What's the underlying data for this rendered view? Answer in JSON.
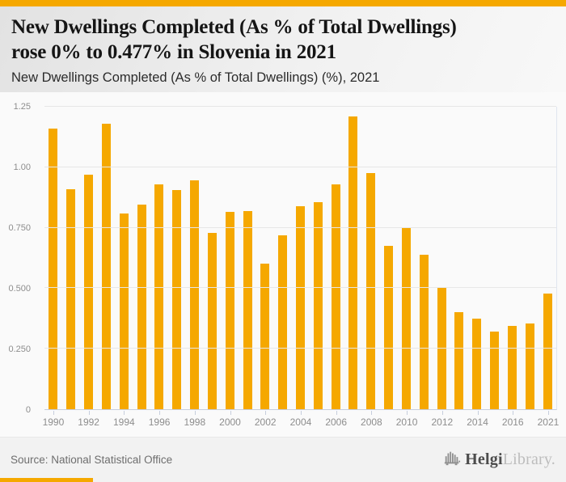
{
  "accent_color": "#f5a800",
  "header": {
    "title_line1": "New Dwellings Completed (As % of Total Dwellings)",
    "title_line2": "rose 0% to 0.477% in Slovenia in 2021",
    "subtitle": "New Dwellings Completed (As % of Total Dwellings) (%), 2021"
  },
  "chart_data": {
    "type": "bar",
    "title": "New Dwellings Completed (As % of Total Dwellings) (%), 2021",
    "bar_color": "#f5a800",
    "grid": true,
    "legend": false,
    "ylim": [
      0,
      1.25
    ],
    "yticks": [
      0,
      0.25,
      0.5,
      0.75,
      1.0,
      1.25
    ],
    "ytick_labels": [
      "0",
      "0.250",
      "0.500",
      "0.750",
      "1.00",
      "1.25"
    ],
    "categories": [
      "1990",
      "1991",
      "1992",
      "1993",
      "1994",
      "1995",
      "1996",
      "1997",
      "1998",
      "1999",
      "2000",
      "2001",
      "2002",
      "2003",
      "2004",
      "2005",
      "2006",
      "2007",
      "2008",
      "2009",
      "2010",
      "2011",
      "2012",
      "2013",
      "2014",
      "2015",
      "2016",
      "2017",
      "2021"
    ],
    "values": [
      1.16,
      0.91,
      0.97,
      1.18,
      0.81,
      0.845,
      0.93,
      0.905,
      0.945,
      0.73,
      0.815,
      0.82,
      0.6,
      0.72,
      0.84,
      0.855,
      0.93,
      1.21,
      0.975,
      0.675,
      0.75,
      0.64,
      0.505,
      0.4,
      0.375,
      0.32,
      0.345,
      0.355,
      0.477
    ],
    "xtick_labels": [
      "1990",
      "1992",
      "1994",
      "1996",
      "1998",
      "2000",
      "2002",
      "2004",
      "2006",
      "2008",
      "2010",
      "2012",
      "2014",
      "2016",
      "2021"
    ]
  },
  "footer": {
    "source": "Source: National Statistical Office",
    "brand_bold": "Helgi",
    "brand_light": "Library",
    "brand_suffix": "."
  }
}
